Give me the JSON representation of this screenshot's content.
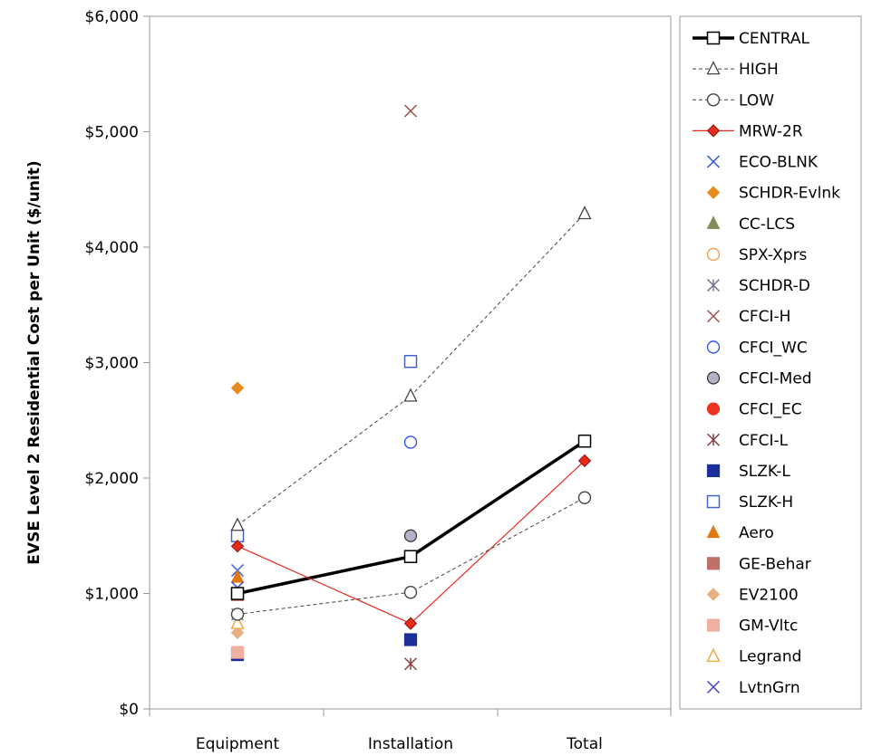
{
  "chart_data": {
    "type": "scatter",
    "title": "",
    "xlabel": "",
    "ylabel": "EVSE Level 2 Residential Cost per Unit ($/unit)",
    "categories": [
      "Equipment",
      "Installation",
      "Total"
    ],
    "ylim": [
      0,
      6000
    ],
    "yticks": [
      0,
      1000,
      2000,
      3000,
      4000,
      5000,
      6000
    ],
    "ytick_labels": [
      "$0",
      "$1,000",
      "$2,000",
      "$3,000",
      "$4,000",
      "$5,000",
      "$6,000"
    ],
    "grid": false,
    "legend_position": "right",
    "series": [
      {
        "name": "CENTRAL",
        "values": [
          1000,
          1320,
          2320
        ],
        "marker": "square-open",
        "color": "#000000",
        "line": "solid-thick"
      },
      {
        "name": "HIGH",
        "values": [
          1590,
          2710,
          4290
        ],
        "marker": "triangle-open",
        "color": "#444444",
        "line": "dashed"
      },
      {
        "name": "LOW",
        "values": [
          820,
          1010,
          1830
        ],
        "marker": "circle-open",
        "color": "#444444",
        "line": "dashed"
      },
      {
        "name": "MRW-2R",
        "values": [
          1410,
          740,
          2150
        ],
        "marker": "diamond-filled",
        "color": "#e8291c",
        "line": "solid-thin"
      },
      {
        "name": "ECO-BLNK",
        "values": [
          1200,
          null,
          null
        ],
        "marker": "x",
        "color": "#3a5bd9",
        "line": "none"
      },
      {
        "name": "SCHDR-Evlnk",
        "values": [
          2780,
          null,
          null
        ],
        "marker": "diamond-filled",
        "color": "#e58a1f",
        "line": "none"
      },
      {
        "name": "CC-LCS",
        "values": [
          null,
          null,
          null
        ],
        "marker": "triangle-filled",
        "color": "#7f8c5a",
        "line": "none"
      },
      {
        "name": "SPX-Xprs",
        "values": [
          1000,
          null,
          null
        ],
        "marker": "circle-open",
        "color": "#f0a050",
        "line": "none"
      },
      {
        "name": "SCHDR-D",
        "values": [
          820,
          null,
          null
        ],
        "marker": "asterisk",
        "color": "#777799",
        "line": "none"
      },
      {
        "name": "CFCI-H",
        "values": [
          null,
          5180,
          null
        ],
        "marker": "x",
        "color": "#a0524a",
        "line": "none"
      },
      {
        "name": "CFCI_WC",
        "values": [
          null,
          2310,
          null
        ],
        "marker": "circle-open",
        "color": "#3355ee",
        "line": "none"
      },
      {
        "name": "CFCI-Med",
        "values": [
          null,
          1500,
          null
        ],
        "marker": "circle-filled",
        "color": "#b8b0c8",
        "line": "none"
      },
      {
        "name": "CFCI_EC",
        "values": [
          null,
          1320,
          null
        ],
        "marker": "circle-filled",
        "color": "#ee3322",
        "line": "none"
      },
      {
        "name": "CFCI-L",
        "values": [
          null,
          390,
          null
        ],
        "marker": "asterisk",
        "color": "#8b4040",
        "line": "none"
      },
      {
        "name": "SLZK-L",
        "values": [
          470,
          600,
          null
        ],
        "marker": "square-filled",
        "color": "#1a2f9a",
        "line": "none"
      },
      {
        "name": "SLZK-H",
        "values": [
          1500,
          3010,
          null
        ],
        "marker": "square-open",
        "color": "#4466cc",
        "line": "none"
      },
      {
        "name": "Aero",
        "values": [
          1140,
          null,
          null
        ],
        "marker": "triangle-filled",
        "color": "#e07a10",
        "line": "none"
      },
      {
        "name": "GE-Behar",
        "values": [
          990,
          null,
          null
        ],
        "marker": "square-filled",
        "color": "#c0706a",
        "line": "none"
      },
      {
        "name": "EV2100",
        "values": [
          660,
          null,
          null
        ],
        "marker": "diamond-filled",
        "color": "#e8b080",
        "line": "none"
      },
      {
        "name": "GM-Vltc",
        "values": [
          490,
          null,
          null
        ],
        "marker": "square-filled",
        "color": "#f0b0a0",
        "line": "none"
      },
      {
        "name": "Legrand",
        "values": [
          740,
          null,
          null
        ],
        "marker": "triangle-open",
        "color": "#f0a030",
        "line": "none"
      },
      {
        "name": "LvtnGrn",
        "values": [
          1050,
          null,
          null
        ],
        "marker": "x",
        "color": "#4444cc",
        "line": "none"
      }
    ]
  }
}
